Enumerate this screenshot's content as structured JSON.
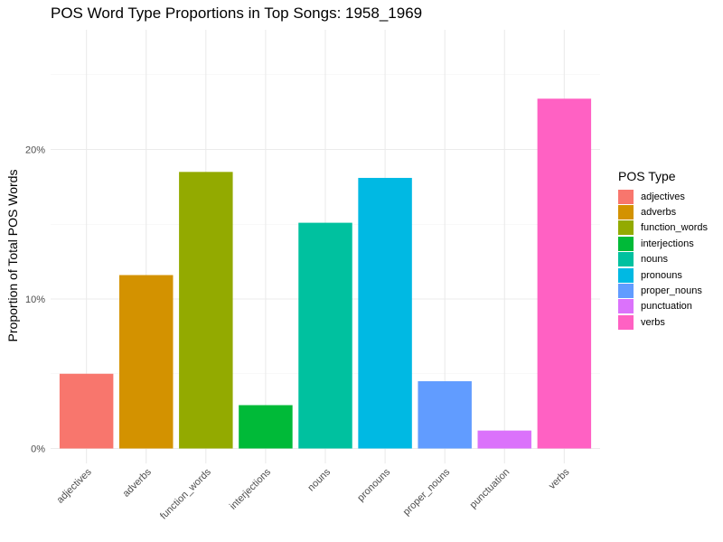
{
  "chart_data": {
    "type": "bar",
    "title": "POS Word Type Proportions in Top Songs: 1958_1969",
    "xlabel": "",
    "ylabel": "Proportion of Total POS Words",
    "categories": [
      "adjectives",
      "adverbs",
      "function_words",
      "interjections",
      "nouns",
      "pronouns",
      "proper_nouns",
      "punctuation",
      "verbs"
    ],
    "values": [
      0.05,
      0.116,
      0.185,
      0.029,
      0.151,
      0.181,
      0.045,
      0.012,
      0.234
    ],
    "colors": [
      "#F8766D",
      "#D39200",
      "#93AA00",
      "#00BA38",
      "#00C19F",
      "#00B9E3",
      "#619CFF",
      "#DB72FB",
      "#FF61C3"
    ],
    "ylim": [
      0,
      0.28
    ],
    "yticks": [
      0,
      0.1,
      0.2
    ],
    "ytick_labels": [
      "0%",
      "10%",
      "20%"
    ],
    "grid": true,
    "legend": {
      "title": "POS Type",
      "placement": "right",
      "items": [
        "adjectives",
        "adverbs",
        "function_words",
        "interjections",
        "nouns",
        "pronouns",
        "proper_nouns",
        "punctuation",
        "verbs"
      ]
    }
  }
}
